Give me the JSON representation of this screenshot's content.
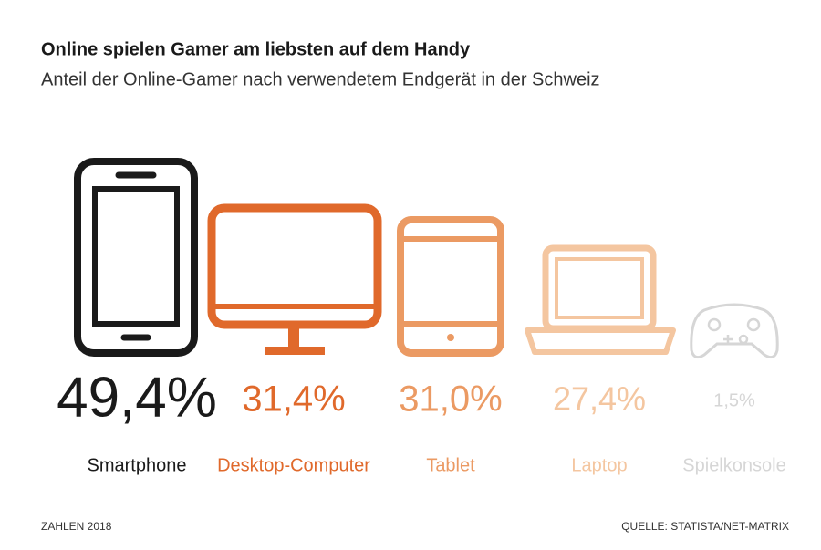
{
  "chart_data": {
    "type": "pictogram",
    "title": "Online spielen Gamer am liebsten auf dem Handy",
    "subtitle": "Anteil der Online-Gamer nach verwendetem Endgerät in der Schweiz",
    "categories": [
      "Smartphone",
      "Desktop-Computer",
      "Tablet",
      "Laptop",
      "Spielkonsole"
    ],
    "values": [
      49.4,
      31.4,
      31.0,
      27.4,
      1.5
    ],
    "value_labels": [
      "49,4%",
      "31,4%",
      "31,0%",
      "27,4%",
      "1,5%"
    ],
    "colors": [
      "#1a1a1a",
      "#e0692b",
      "#eb9a63",
      "#f4c6a0",
      "#d6d6d6"
    ],
    "note": "ZAHLEN 2018",
    "source": "QUELLE: STATISTA/NET-MATRIX"
  }
}
